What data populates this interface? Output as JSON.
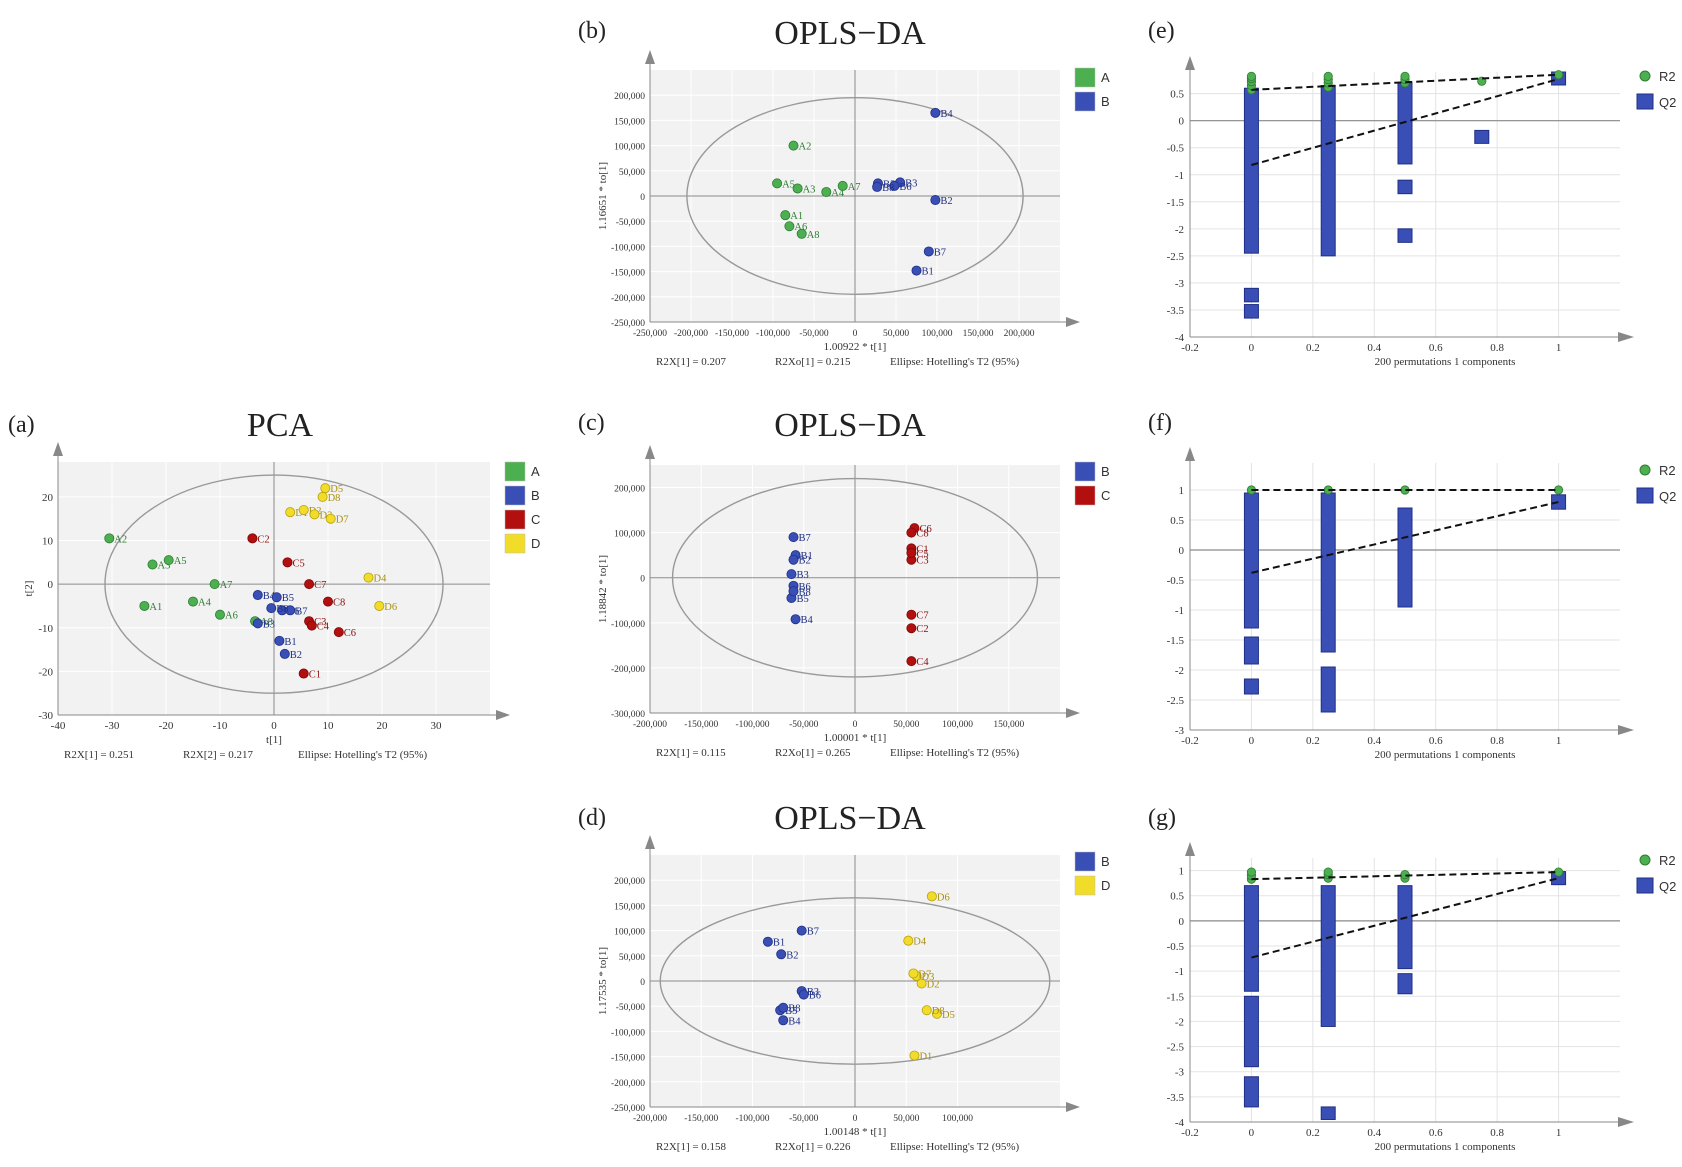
{
  "figure": {
    "panels": [
      "(a)",
      "(b)",
      "(c)",
      "(d)",
      "(e)",
      "(f)",
      "(g)"
    ]
  },
  "colors": {
    "A": "#4caf50",
    "B": "#3a4fb5",
    "C": "#b40f0f",
    "D": "#f2dc2a",
    "grid": "#ffffff",
    "plot_bg": "#f2f2f2"
  },
  "chart_data": [
    {
      "id": "a",
      "panel_label": "(a)",
      "type": "scatter",
      "title": "PCA",
      "xlabel": "t[1]",
      "ylabel": "t[2]",
      "xlim": [
        -40,
        40
      ],
      "ylim": [
        -30,
        28
      ],
      "xticks": [
        -40,
        -30,
        -20,
        -10,
        0,
        10,
        20,
        30
      ],
      "yticks": [
        -30,
        -20,
        -10,
        0,
        10,
        20
      ],
      "ellipse": {
        "cx": 0,
        "cy": 0,
        "rx": 31.3,
        "ry": 25
      },
      "footer": [
        "R2X[1] = 0.251",
        "R2X[2] = 0.217",
        "Ellipse: Hotelling's T2 (95%)"
      ],
      "legend": [
        "A",
        "B",
        "C",
        "D"
      ],
      "points": [
        {
          "label": "A1",
          "group": "A",
          "x": -24,
          "y": -5
        },
        {
          "label": "A2",
          "group": "A",
          "x": -30.5,
          "y": 10.5
        },
        {
          "label": "A3",
          "group": "A",
          "x": -22.5,
          "y": 4.5
        },
        {
          "label": "A4",
          "group": "A",
          "x": -15,
          "y": -4
        },
        {
          "label": "A5",
          "group": "A",
          "x": -19.5,
          "y": 5.5
        },
        {
          "label": "A6",
          "group": "A",
          "x": -10,
          "y": -7
        },
        {
          "label": "A7",
          "group": "A",
          "x": -11,
          "y": 0
        },
        {
          "label": "A8",
          "group": "A",
          "x": -3.5,
          "y": -8.5
        },
        {
          "label": "B1",
          "group": "B",
          "x": 1,
          "y": -13
        },
        {
          "label": "B2",
          "group": "B",
          "x": 2,
          "y": -16
        },
        {
          "label": "B3",
          "group": "B",
          "x": -3,
          "y": -9
        },
        {
          "label": "B4",
          "group": "B",
          "x": -3,
          "y": -2.5
        },
        {
          "label": "B5",
          "group": "B",
          "x": 0.5,
          "y": -3
        },
        {
          "label": "B6",
          "group": "B",
          "x": 1.5,
          "y": -6
        },
        {
          "label": "B7",
          "group": "B",
          "x": 3,
          "y": -6
        },
        {
          "label": "B8",
          "group": "B",
          "x": -0.5,
          "y": -5.5
        },
        {
          "label": "C1",
          "group": "C",
          "x": 5.5,
          "y": -20.5
        },
        {
          "label": "C2",
          "group": "C",
          "x": -4,
          "y": 10.5
        },
        {
          "label": "C3",
          "group": "C",
          "x": 6.5,
          "y": -8.5
        },
        {
          "label": "C4",
          "group": "C",
          "x": 7,
          "y": -9.5
        },
        {
          "label": "C5",
          "group": "C",
          "x": 2.5,
          "y": 5
        },
        {
          "label": "C6",
          "group": "C",
          "x": 12,
          "y": -11
        },
        {
          "label": "C7",
          "group": "C",
          "x": 6.5,
          "y": 0
        },
        {
          "label": "C8",
          "group": "C",
          "x": 10,
          "y": -4
        },
        {
          "label": "D1",
          "group": "D",
          "x": 3,
          "y": 16.5
        },
        {
          "label": "D2",
          "group": "D",
          "x": 5.5,
          "y": 17
        },
        {
          "label": "D3",
          "group": "D",
          "x": 7.5,
          "y": 16
        },
        {
          "label": "D4",
          "group": "D",
          "x": 17.5,
          "y": 1.5
        },
        {
          "label": "D5",
          "group": "D",
          "x": 9.5,
          "y": 22
        },
        {
          "label": "D6",
          "group": "D",
          "x": 19.5,
          "y": -5
        },
        {
          "label": "D7",
          "group": "D",
          "x": 10.5,
          "y": 15
        },
        {
          "label": "D8",
          "group": "D",
          "x": 9,
          "y": 20
        }
      ]
    },
    {
      "id": "b",
      "panel_label": "(b)",
      "type": "scatter",
      "title": "OPLS−DA",
      "xlabel": "1.00922 * t[1]",
      "ylabel": "1.16651 * to[1]",
      "xlim": [
        -250000,
        250000
      ],
      "ylim": [
        -250000,
        250000
      ],
      "xticks": [
        -250000,
        -200000,
        -150000,
        -100000,
        -50000,
        0,
        50000,
        100000,
        150000,
        200000
      ],
      "yticks": [
        -250000,
        -200000,
        -150000,
        -100000,
        -50000,
        0,
        50000,
        100000,
        150000,
        200000
      ],
      "ellipse": {
        "cx": 0,
        "cy": 0,
        "rx": 205000,
        "ry": 195000
      },
      "footer": [
        "R2X[1] = 0.207",
        "R2Xo[1] = 0.215",
        "Ellipse: Hotelling's T2 (95%)"
      ],
      "legend": [
        "A",
        "B"
      ],
      "points": [
        {
          "label": "A1",
          "group": "A",
          "x": -85000,
          "y": -38000
        },
        {
          "label": "A2",
          "group": "A",
          "x": -75000,
          "y": 100000
        },
        {
          "label": "A3",
          "group": "A",
          "x": -70000,
          "y": 15000
        },
        {
          "label": "A4",
          "group": "A",
          "x": -35000,
          "y": 8000
        },
        {
          "label": "A5",
          "group": "A",
          "x": -95000,
          "y": 25000
        },
        {
          "label": "A6",
          "group": "A",
          "x": -80000,
          "y": -60000
        },
        {
          "label": "A7",
          "group": "A",
          "x": -15000,
          "y": 20000
        },
        {
          "label": "A8",
          "group": "A",
          "x": -65000,
          "y": -75000
        },
        {
          "label": "B1",
          "group": "B",
          "x": 75000,
          "y": -148000
        },
        {
          "label": "B2",
          "group": "B",
          "x": 98000,
          "y": -8000
        },
        {
          "label": "B3",
          "group": "B",
          "x": 55000,
          "y": 27000
        },
        {
          "label": "B4",
          "group": "B",
          "x": 98000,
          "y": 165000
        },
        {
          "label": "B5",
          "group": "B",
          "x": 28000,
          "y": 25000
        },
        {
          "label": "B6",
          "group": "B",
          "x": 48000,
          "y": 20000
        },
        {
          "label": "B7",
          "group": "B",
          "x": 90000,
          "y": -110000
        },
        {
          "label": "B8",
          "group": "B",
          "x": 27000,
          "y": 18000
        }
      ]
    },
    {
      "id": "c",
      "panel_label": "(c)",
      "type": "scatter",
      "title": "OPLS−DA",
      "xlabel": "1.00001 * t[1]",
      "ylabel": "1.18842 * to[1]",
      "xlim": [
        -200000,
        200000
      ],
      "ylim": [
        -300000,
        250000
      ],
      "xticks": [
        -200000,
        -150000,
        -100000,
        -50000,
        0,
        50000,
        100000,
        150000
      ],
      "yticks": [
        -300000,
        -200000,
        -100000,
        0,
        100000,
        200000
      ],
      "ellipse": {
        "cx": 0,
        "cy": 0,
        "rx": 178000,
        "ry": 220000
      },
      "footer": [
        "R2X[1] = 0.115",
        "R2Xo[1] = 0.265",
        "Ellipse: Hotelling's T2 (95%)"
      ],
      "legend": [
        "B",
        "C"
      ],
      "points": [
        {
          "label": "B1",
          "group": "B",
          "x": -58000,
          "y": 50000
        },
        {
          "label": "B2",
          "group": "B",
          "x": -60000,
          "y": 40000
        },
        {
          "label": "B3",
          "group": "B",
          "x": -62000,
          "y": 8000
        },
        {
          "label": "B4",
          "group": "B",
          "x": -58000,
          "y": -92000
        },
        {
          "label": "B5",
          "group": "B",
          "x": -62000,
          "y": -45000
        },
        {
          "label": "B6",
          "group": "B",
          "x": -60000,
          "y": -18000
        },
        {
          "label": "B7",
          "group": "B",
          "x": -60000,
          "y": 90000
        },
        {
          "label": "B8",
          "group": "B",
          "x": -60000,
          "y": -30000
        },
        {
          "label": "C1",
          "group": "C",
          "x": 55000,
          "y": 65000
        },
        {
          "label": "C2",
          "group": "C",
          "x": 55000,
          "y": -112000
        },
        {
          "label": "C3",
          "group": "C",
          "x": 55000,
          "y": 40000
        },
        {
          "label": "C4",
          "group": "C",
          "x": 55000,
          "y": -185000
        },
        {
          "label": "C5",
          "group": "C",
          "x": 55000,
          "y": 55000
        },
        {
          "label": "C6",
          "group": "C",
          "x": 58000,
          "y": 110000
        },
        {
          "label": "C7",
          "group": "C",
          "x": 55000,
          "y": -82000
        },
        {
          "label": "C8",
          "group": "C",
          "x": 55000,
          "y": 100000
        }
      ]
    },
    {
      "id": "d",
      "panel_label": "(d)",
      "type": "scatter",
      "title": "OPLS−DA",
      "xlabel": "1.00148 * t[1]",
      "ylabel": "1.17535 * to[1]",
      "xlim": [
        -200000,
        200000
      ],
      "ylim": [
        -250000,
        250000
      ],
      "xticks": [
        -200000,
        -150000,
        -100000,
        -50000,
        0,
        50000,
        100000
      ],
      "yticks": [
        -250000,
        -200000,
        -150000,
        -100000,
        -50000,
        0,
        50000,
        100000,
        150000,
        200000
      ],
      "ellipse": {
        "cx": 0,
        "cy": 0,
        "rx": 190000,
        "ry": 165000
      },
      "footer": [
        "R2X[1] = 0.158",
        "R2Xo[1] = 0.226",
        "Ellipse: Hotelling's T2 (95%)"
      ],
      "legend": [
        "B",
        "D"
      ],
      "points": [
        {
          "label": "B1",
          "group": "B",
          "x": -85000,
          "y": 78000
        },
        {
          "label": "B2",
          "group": "B",
          "x": -72000,
          "y": 53000
        },
        {
          "label": "B3",
          "group": "B",
          "x": -52000,
          "y": -20000
        },
        {
          "label": "B4",
          "group": "B",
          "x": -70000,
          "y": -78000
        },
        {
          "label": "B5",
          "group": "B",
          "x": -73000,
          "y": -58000
        },
        {
          "label": "B6",
          "group": "B",
          "x": -50000,
          "y": -27000
        },
        {
          "label": "B7",
          "group": "B",
          "x": -52000,
          "y": 100000
        },
        {
          "label": "B8",
          "group": "B",
          "x": -70000,
          "y": -53000
        },
        {
          "label": "D1",
          "group": "D",
          "x": 58000,
          "y": -148000
        },
        {
          "label": "D2",
          "group": "D",
          "x": 65000,
          "y": -5000
        },
        {
          "label": "D3",
          "group": "D",
          "x": 60000,
          "y": 10000
        },
        {
          "label": "D4",
          "group": "D",
          "x": 52000,
          "y": 80000
        },
        {
          "label": "D5",
          "group": "D",
          "x": 80000,
          "y": -65000
        },
        {
          "label": "D6",
          "group": "D",
          "x": 75000,
          "y": 168000
        },
        {
          "label": "D7",
          "group": "D",
          "x": 57000,
          "y": 15000
        },
        {
          "label": "D8",
          "group": "D",
          "x": 70000,
          "y": -58000
        }
      ]
    },
    {
      "id": "e",
      "panel_label": "(e)",
      "type": "scatter",
      "subtype": "permutation-test",
      "xlabel": "200 permutations 1 components",
      "xlim": [
        -0.2,
        1.2
      ],
      "ylim": [
        -4,
        0.9
      ],
      "xticks": [
        -0.2,
        0,
        0.2,
        0.4,
        0.6,
        0.8,
        1
      ],
      "yticks": [
        -4,
        -3.5,
        -3,
        -2.5,
        -2,
        -1.5,
        -1,
        -0.5,
        0,
        0.5
      ],
      "legend": [
        "R2",
        "Q2"
      ],
      "r2_line": {
        "x": [
          0,
          1
        ],
        "y": [
          0.57,
          0.85
        ]
      },
      "q2_line": {
        "x": [
          0,
          1
        ],
        "y": [
          -0.82,
          0.77
        ]
      },
      "r2_points": [
        {
          "x": 0,
          "y": [
            0.57,
            0.65,
            0.72,
            0.78,
            0.82
          ]
        },
        {
          "x": 0.25,
          "y": [
            0.62,
            0.7,
            0.76,
            0.82
          ]
        },
        {
          "x": 0.5,
          "y": [
            0.7,
            0.76,
            0.82
          ]
        },
        {
          "x": 0.75,
          "y": [
            0.73
          ]
        },
        {
          "x": 1,
          "y": [
            0.85
          ]
        }
      ],
      "q2_segments": [
        {
          "x": 0,
          "from": -2.45,
          "to": 0.6
        },
        {
          "x": 0,
          "from": -3.35,
          "to": -3.1
        },
        {
          "x": 0,
          "from": -3.65,
          "to": -3.4
        },
        {
          "x": 0.25,
          "from": -2.5,
          "to": 0.65
        },
        {
          "x": 0.5,
          "from": -0.8,
          "to": 0.7
        },
        {
          "x": 0.5,
          "from": -1.35,
          "to": -1.1
        },
        {
          "x": 0.5,
          "from": -2.25,
          "to": -2.0
        },
        {
          "x": 0.75,
          "from": -0.42,
          "to": -0.18
        },
        {
          "x": 1,
          "from": 0.66,
          "to": 0.9
        }
      ]
    },
    {
      "id": "f",
      "panel_label": "(f)",
      "type": "scatter",
      "subtype": "permutation-test",
      "xlabel": "200 permutations 1 components",
      "xlim": [
        -0.2,
        1.2
      ],
      "ylim": [
        -3,
        1.45
      ],
      "xticks": [
        -0.2,
        0,
        0.2,
        0.4,
        0.6,
        0.8,
        1
      ],
      "yticks": [
        -3,
        -2.5,
        -2,
        -1.5,
        -1,
        -0.5,
        0,
        0.5,
        1
      ],
      "legend": [
        "R2",
        "Q2"
      ],
      "r2_line": {
        "x": [
          0,
          1
        ],
        "y": [
          1.0,
          1.0
        ]
      },
      "q2_line": {
        "x": [
          0,
          1
        ],
        "y": [
          -0.38,
          0.8
        ]
      },
      "r2_points": [
        {
          "x": 0,
          "y": [
            1.0
          ]
        },
        {
          "x": 0.25,
          "y": [
            1.0
          ]
        },
        {
          "x": 0.5,
          "y": [
            1.0
          ]
        },
        {
          "x": 1,
          "y": [
            1.0
          ]
        }
      ],
      "q2_segments": [
        {
          "x": 0,
          "from": -1.3,
          "to": 0.95
        },
        {
          "x": 0,
          "from": -1.9,
          "to": -1.45
        },
        {
          "x": 0,
          "from": -2.4,
          "to": -2.15
        },
        {
          "x": 0.25,
          "from": -1.7,
          "to": 0.95
        },
        {
          "x": 0.25,
          "from": -2.7,
          "to": -1.95
        },
        {
          "x": 0.5,
          "from": -0.95,
          "to": 0.7
        },
        {
          "x": 1,
          "from": 0.68,
          "to": 0.92
        }
      ]
    },
    {
      "id": "g",
      "panel_label": "(g)",
      "type": "scatter",
      "subtype": "permutation-test",
      "xlabel": "200 permutations 1 components",
      "xlim": [
        -0.2,
        1.2
      ],
      "ylim": [
        -4,
        1.25
      ],
      "xticks": [
        -0.2,
        0,
        0.2,
        0.4,
        0.6,
        0.8,
        1
      ],
      "yticks": [
        -4,
        -3.5,
        -3,
        -2.5,
        -2,
        -1.5,
        -1,
        -0.5,
        0,
        0.5,
        1
      ],
      "legend": [
        "R2",
        "Q2"
      ],
      "r2_line": {
        "x": [
          0,
          1
        ],
        "y": [
          0.83,
          0.97
        ]
      },
      "q2_line": {
        "x": [
          0,
          1
        ],
        "y": [
          -0.73,
          0.85
        ]
      },
      "r2_points": [
        {
          "x": 0,
          "y": [
            0.83,
            0.9,
            0.97
          ]
        },
        {
          "x": 0.25,
          "y": [
            0.85,
            0.92,
            0.97
          ]
        },
        {
          "x": 0.5,
          "y": [
            0.85,
            0.92
          ]
        },
        {
          "x": 1,
          "y": [
            0.97
          ]
        }
      ],
      "q2_segments": [
        {
          "x": 0,
          "from": -1.4,
          "to": 0.7
        },
        {
          "x": 0,
          "from": -2.9,
          "to": -1.5
        },
        {
          "x": 0,
          "from": -3.7,
          "to": -3.1
        },
        {
          "x": 0.25,
          "from": -2.1,
          "to": 0.7
        },
        {
          "x": 0.25,
          "from": -3.95,
          "to": -3.7
        },
        {
          "x": 0.5,
          "from": -0.95,
          "to": 0.7
        },
        {
          "x": 0.5,
          "from": -1.45,
          "to": -1.05
        },
        {
          "x": 1,
          "from": 0.72,
          "to": 0.98
        }
      ]
    }
  ]
}
